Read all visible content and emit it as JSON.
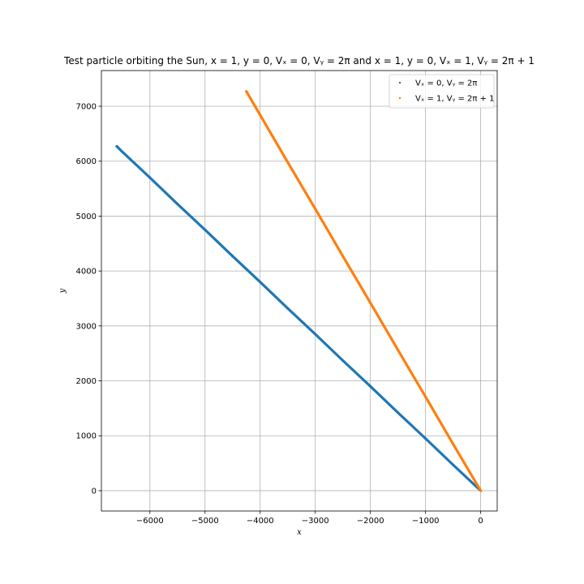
{
  "chart_data": {
    "type": "scatter",
    "title": "Test particle orbiting the Sun, x = 1,  y = 0,  Vₓ = 0,  Vᵧ = 2π and x = 1,  y = 0,  Vₓ = 1,  Vᵧ = 2π + 1",
    "xlabel": "x",
    "ylabel": "y",
    "xlim": [
      -6880,
      300
    ],
    "ylim": [
      -370,
      7650
    ],
    "x_ticks": [
      -6000,
      -5000,
      -4000,
      -3000,
      -2000,
      -1000,
      0
    ],
    "x_tick_labels": [
      "−6000",
      "−5000",
      "−4000",
      "−3000",
      "−2000",
      "−1000",
      "0"
    ],
    "y_ticks": [
      0,
      1000,
      2000,
      3000,
      4000,
      5000,
      6000,
      7000
    ],
    "y_tick_labels": [
      "0",
      "1000",
      "2000",
      "3000",
      "4000",
      "5000",
      "6000",
      "7000"
    ],
    "grid": true,
    "legend_position": "top-right",
    "series": [
      {
        "name": "Vₓ = 0,  Vᵧ = 2π",
        "color": "#1f77b4",
        "x": [
          0,
          -500,
          -1000,
          -1500,
          -2000,
          -2500,
          -3000,
          -3500,
          -4000,
          -4500,
          -5000,
          -5500,
          -6000,
          -6500,
          -6600
        ],
        "y": [
          0,
          470,
          950,
          1420,
          1900,
          2370,
          2850,
          3320,
          3800,
          4270,
          4750,
          5220,
          5700,
          6170,
          6270
        ]
      },
      {
        "name": "Vₓ = 1,  Vᵧ = 2π + 1",
        "color": "#ff7f0e",
        "x": [
          0,
          -500,
          -1000,
          -1500,
          -2000,
          -2500,
          -3000,
          -3500,
          -4000,
          -4250
        ],
        "y": [
          0,
          850,
          1710,
          2560,
          3420,
          4270,
          5130,
          5980,
          6840,
          7270
        ]
      }
    ]
  }
}
